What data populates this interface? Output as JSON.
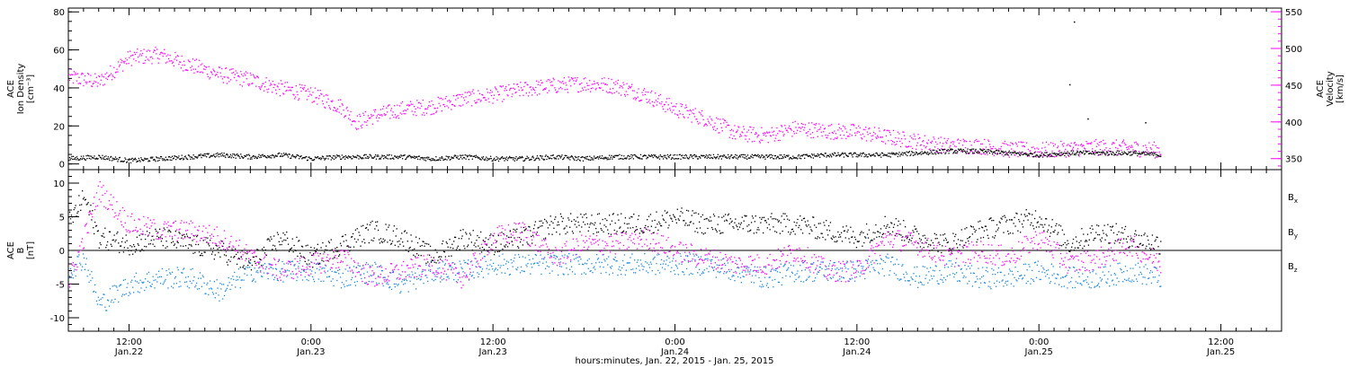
{
  "chart_data": {
    "type": "scatter",
    "xlabel": "hours:minutes, Jan. 22, 2015 - Jan. 25, 2015",
    "x_ticks": [
      {
        "time": "12:00",
        "date": "Jan.22",
        "hours": 12
      },
      {
        "time": "0:00",
        "date": "Jan.23",
        "hours": 24
      },
      {
        "time": "12:00",
        "date": "Jan.23",
        "hours": 36
      },
      {
        "time": "0:00",
        "date": "Jan.24",
        "hours": 48
      },
      {
        "time": "12:00",
        "date": "Jan.24",
        "hours": 60
      },
      {
        "time": "0:00",
        "date": "Jan.25",
        "hours": 72
      },
      {
        "time": "12:00",
        "date": "Jan.25",
        "hours": 84
      }
    ],
    "xlim_hours": [
      8,
      88
    ],
    "data_end_hours": 80,
    "panels": [
      {
        "ylabel_left": [
          "ACE",
          "Ion Density",
          "[cm⁻³]"
        ],
        "ylim_left": [
          -3,
          82
        ],
        "yticks_left": [
          0,
          20,
          40,
          60,
          80
        ],
        "ylabel_right": [
          "ACE",
          "Velocity",
          "[km/s]"
        ],
        "ylim_right": [
          335,
          555
        ],
        "yticks_right": [
          350,
          400,
          450,
          500,
          550
        ],
        "series": [
          {
            "axis": "right",
            "color": "#ff00ff",
            "points_hours_kms": [
              [
                8,
                462
              ],
              [
                10,
                455
              ],
              [
                12,
                488
              ],
              [
                14,
                492
              ],
              [
                16,
                478
              ],
              [
                18,
                465
              ],
              [
                20,
                458
              ],
              [
                22,
                446
              ],
              [
                24,
                438
              ],
              [
                26,
                421
              ],
              [
                27,
                400
              ],
              [
                28,
                408
              ],
              [
                30,
                418
              ],
              [
                32,
                422
              ],
              [
                34,
                432
              ],
              [
                36,
                437
              ],
              [
                38,
                445
              ],
              [
                40,
                450
              ],
              [
                42,
                453
              ],
              [
                44,
                450
              ],
              [
                46,
                438
              ],
              [
                48,
                418
              ],
              [
                50,
                405
              ],
              [
                52,
                385
              ],
              [
                54,
                382
              ],
              [
                56,
                392
              ],
              [
                58,
                388
              ],
              [
                60,
                387
              ],
              [
                62,
                380
              ],
              [
                64,
                374
              ],
              [
                66,
                368
              ],
              [
                68,
                368
              ],
              [
                70,
                363
              ],
              [
                72,
                362
              ],
              [
                74,
                364
              ],
              [
                76,
                366
              ],
              [
                78,
                365
              ],
              [
                80,
                362
              ]
            ]
          },
          {
            "axis": "left",
            "color": "#000000",
            "points_hours_cm3": [
              [
                8,
                3
              ],
              [
                10,
                4
              ],
              [
                12,
                2
              ],
              [
                14,
                3
              ],
              [
                16,
                4
              ],
              [
                18,
                5
              ],
              [
                20,
                4
              ],
              [
                22,
                5
              ],
              [
                24,
                3
              ],
              [
                26,
                4
              ],
              [
                28,
                4
              ],
              [
                30,
                4
              ],
              [
                32,
                3
              ],
              [
                34,
                4
              ],
              [
                36,
                3
              ],
              [
                38,
                3
              ],
              [
                40,
                4
              ],
              [
                42,
                3
              ],
              [
                44,
                4
              ],
              [
                46,
                4
              ],
              [
                48,
                4
              ],
              [
                50,
                4
              ],
              [
                52,
                4
              ],
              [
                54,
                4
              ],
              [
                56,
                4
              ],
              [
                58,
                5
              ],
              [
                60,
                5
              ],
              [
                62,
                5
              ],
              [
                64,
                6
              ],
              [
                66,
                7
              ],
              [
                68,
                7
              ],
              [
                70,
                6
              ],
              [
                72,
                5
              ],
              [
                74,
                6
              ],
              [
                76,
                6
              ],
              [
                78,
                6
              ],
              [
                80,
                5
              ]
            ],
            "spikes_hours_cm3": [
              [
                74.3,
                75
              ],
              [
                74.0,
                42
              ],
              [
                75.2,
                24
              ],
              [
                79,
                22
              ]
            ]
          }
        ]
      },
      {
        "ylabel_left": [
          "ACE",
          "B",
          "[nT]"
        ],
        "ylim_left": [
          -12,
          12
        ],
        "yticks_left": [
          -10,
          -5,
          0,
          5,
          10
        ],
        "zero_line": true,
        "legend": [
          "Bx",
          "By",
          "Bz"
        ],
        "series": [
          {
            "name": "Bx",
            "color": "#000000",
            "points_hours_nT": [
              [
                8,
                4
              ],
              [
                9,
                8
              ],
              [
                10,
                2
              ],
              [
                12,
                1
              ],
              [
                14,
                2
              ],
              [
                16,
                1
              ],
              [
                18,
                0
              ],
              [
                20,
                -2
              ],
              [
                22,
                2
              ],
              [
                24,
                -1
              ],
              [
                26,
                1
              ],
              [
                28,
                3
              ],
              [
                30,
                2
              ],
              [
                32,
                -1
              ],
              [
                34,
                2
              ],
              [
                36,
                1
              ],
              [
                38,
                2
              ],
              [
                40,
                4
              ],
              [
                42,
                4
              ],
              [
                44,
                4
              ],
              [
                46,
                4
              ],
              [
                48,
                5
              ],
              [
                50,
                4
              ],
              [
                52,
                4
              ],
              [
                54,
                4
              ],
              [
                56,
                4
              ],
              [
                58,
                3
              ],
              [
                60,
                2
              ],
              [
                62,
                4
              ],
              [
                64,
                2
              ],
              [
                66,
                1
              ],
              [
                68,
                3
              ],
              [
                70,
                4
              ],
              [
                72,
                5
              ],
              [
                74,
                1
              ],
              [
                76,
                3
              ],
              [
                78,
                2
              ],
              [
                80,
                1
              ]
            ]
          },
          {
            "name": "By",
            "color": "#1a88e0",
            "points_hours_nT": [
              [
                8,
                -3
              ],
              [
                9,
                -1
              ],
              [
                10,
                -8
              ],
              [
                12,
                -5
              ],
              [
                14,
                -4
              ],
              [
                16,
                -4
              ],
              [
                18,
                -6
              ],
              [
                20,
                -3
              ],
              [
                22,
                -3
              ],
              [
                24,
                -3
              ],
              [
                26,
                -4
              ],
              [
                28,
                -3
              ],
              [
                30,
                -5
              ],
              [
                32,
                -3
              ],
              [
                34,
                -3
              ],
              [
                36,
                -2
              ],
              [
                38,
                -2
              ],
              [
                40,
                -2
              ],
              [
                42,
                -2
              ],
              [
                44,
                -2
              ],
              [
                46,
                -2
              ],
              [
                48,
                -2
              ],
              [
                50,
                -2
              ],
              [
                52,
                -3
              ],
              [
                54,
                -4
              ],
              [
                56,
                -3
              ],
              [
                58,
                -3
              ],
              [
                60,
                -3
              ],
              [
                62,
                -2
              ],
              [
                64,
                -4
              ],
              [
                66,
                -3
              ],
              [
                68,
                -4
              ],
              [
                70,
                -4
              ],
              [
                72,
                -3
              ],
              [
                74,
                -4
              ],
              [
                76,
                -4
              ],
              [
                78,
                -3
              ],
              [
                80,
                -4
              ]
            ]
          },
          {
            "name": "Bz",
            "color": "#ff00ff",
            "points_hours_nT": [
              [
                8,
                -5
              ],
              [
                9,
                2
              ],
              [
                10,
                9
              ],
              [
                12,
                4
              ],
              [
                14,
                3
              ],
              [
                16,
                3
              ],
              [
                18,
                2
              ],
              [
                20,
                -1
              ],
              [
                22,
                -3
              ],
              [
                24,
                -2
              ],
              [
                26,
                -1
              ],
              [
                28,
                -4
              ],
              [
                30,
                -3
              ],
              [
                32,
                -2
              ],
              [
                34,
                -4
              ],
              [
                36,
                2
              ],
              [
                38,
                3
              ],
              [
                40,
                -1
              ],
              [
                42,
                1
              ],
              [
                44,
                1
              ],
              [
                46,
                2
              ],
              [
                48,
                0
              ],
              [
                50,
                -1
              ],
              [
                52,
                -2
              ],
              [
                54,
                -2
              ],
              [
                56,
                0
              ],
              [
                58,
                -3
              ],
              [
                60,
                -3
              ],
              [
                62,
                2
              ],
              [
                64,
                1
              ],
              [
                66,
                -1
              ],
              [
                68,
                0
              ],
              [
                70,
                -1
              ],
              [
                72,
                2
              ],
              [
                74,
                -2
              ],
              [
                76,
                -1
              ],
              [
                78,
                1
              ],
              [
                80,
                -2
              ]
            ]
          }
        ]
      }
    ]
  }
}
